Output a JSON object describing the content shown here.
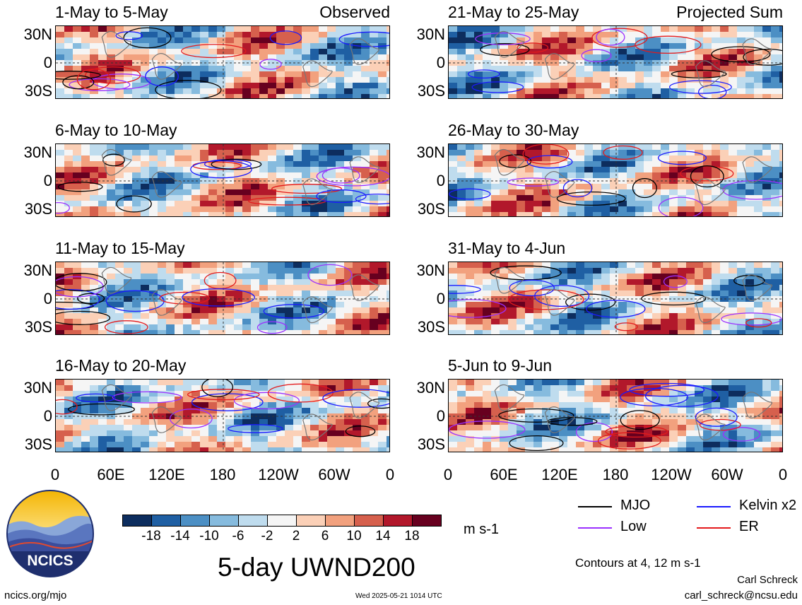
{
  "panels": [
    {
      "title": "1-May to 5-May",
      "tag": "Observed",
      "col": 0,
      "row": 0
    },
    {
      "title": "6-May to 10-May",
      "tag": "",
      "col": 0,
      "row": 1
    },
    {
      "title": "11-May to 15-May",
      "tag": "",
      "col": 0,
      "row": 2
    },
    {
      "title": "16-May to 20-May",
      "tag": "",
      "col": 0,
      "row": 3
    },
    {
      "title": "21-May to 25-May",
      "tag": "Projected Sum",
      "col": 1,
      "row": 0
    },
    {
      "title": "26-May to 30-May",
      "tag": "",
      "col": 1,
      "row": 1
    },
    {
      "title": "31-May to 4-Jun",
      "tag": "",
      "col": 1,
      "row": 2
    },
    {
      "title": "5-Jun to 9-Jun",
      "tag": "",
      "col": 1,
      "row": 3
    }
  ],
  "axes": {
    "y_ticks": [
      "30N",
      "0",
      "30S"
    ],
    "x_ticks": [
      "0",
      "60E",
      "120E",
      "180",
      "120W",
      "60W",
      "0"
    ]
  },
  "colorbar": {
    "colors": [
      "#0d2d5e",
      "#1f5fa3",
      "#4c8fc4",
      "#86bbde",
      "#bfdcee",
      "#f5f5f5",
      "#fbd0b7",
      "#f2a17e",
      "#d6604d",
      "#b2182b",
      "#67001f"
    ],
    "tick_labels": [
      "-18",
      "-14",
      "-10",
      "-6",
      "-2",
      "2",
      "6",
      "10",
      "14",
      "18"
    ],
    "units": "m s-1"
  },
  "main_title": "5-day UWND200",
  "legend": {
    "items": [
      {
        "label": "MJO",
        "color": "#000000"
      },
      {
        "label": "Kelvin x2",
        "color": "#1a1aff"
      },
      {
        "label": "Low",
        "color": "#9b30ff"
      },
      {
        "label": "ER",
        "color": "#e31a1c"
      }
    ],
    "note": "Contours at 4, 12 m s-1"
  },
  "footer": {
    "left": "ncics.org/mjo",
    "timestamp": "Wed 2025-05-21 1014 UTC",
    "author": "Carl Schreck",
    "email": "carl_schreck@ncsu.edu"
  },
  "logo": {
    "text": "NCICS"
  },
  "chart_data": {
    "type": "heatmap",
    "variable": "200-hPa zonal wind anomaly (5-day mean)",
    "units": "m s-1",
    "x": [
      "0",
      "60E",
      "120E",
      "180",
      "120W",
      "60W",
      "0"
    ],
    "y": [
      "30N",
      "0",
      "30S"
    ],
    "ylim": [
      "40S",
      "40N"
    ],
    "color_levels": [
      -18,
      -14,
      -10,
      -6,
      -2,
      2,
      6,
      10,
      14,
      18
    ],
    "contour_levels": [
      4,
      12
    ],
    "contour_series": [
      "MJO",
      "Kelvin x2",
      "Low",
      "ER"
    ],
    "panels": [
      "1-May to 5-May",
      "6-May to 10-May",
      "11-May to 15-May",
      "16-May to 20-May",
      "21-May to 25-May",
      "26-May to 30-May",
      "31-May to 4-Jun",
      "5-Jun to 9-Jun"
    ]
  }
}
